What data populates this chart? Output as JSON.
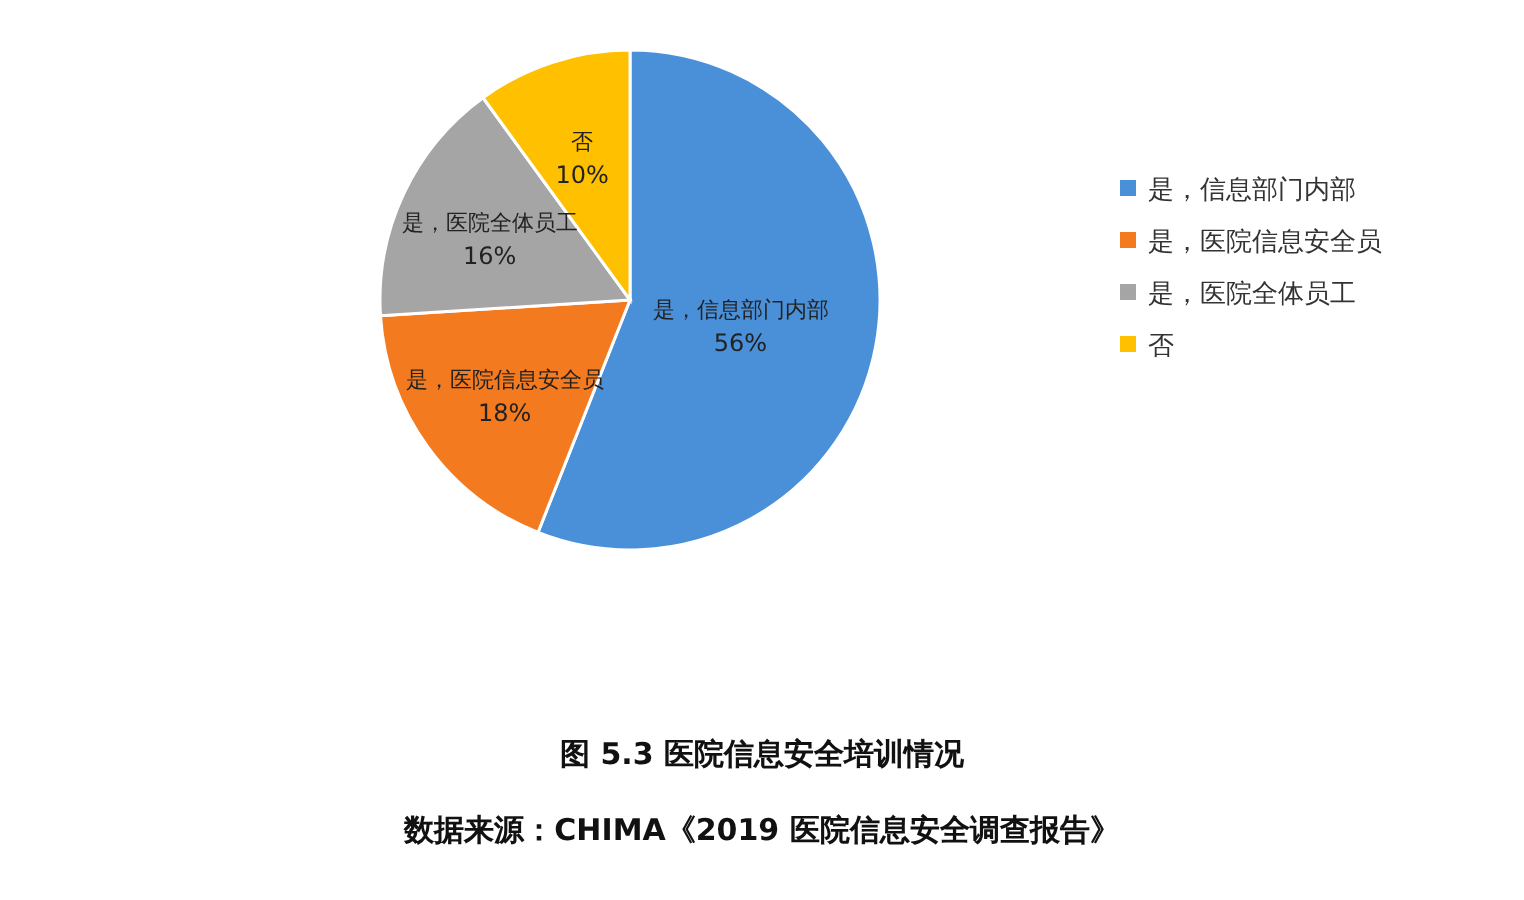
{
  "chart_data": {
    "type": "pie",
    "title": "图 5.3 医院信息安全培训情况",
    "annotations": [
      "数据来源：CHIMA《2019 医院信息安全调查报告》"
    ],
    "categories": [
      "是，信息部门内部",
      "是，医院信息安全员",
      "是，医院全体员工",
      "否"
    ],
    "values": [
      56,
      18,
      16,
      10
    ],
    "colors": [
      "#4a90d9",
      "#f47a1f",
      "#a5a5a5",
      "#ffc000"
    ],
    "value_labels": [
      "56%",
      "18%",
      "16%",
      "10%"
    ],
    "legend": "right"
  }
}
